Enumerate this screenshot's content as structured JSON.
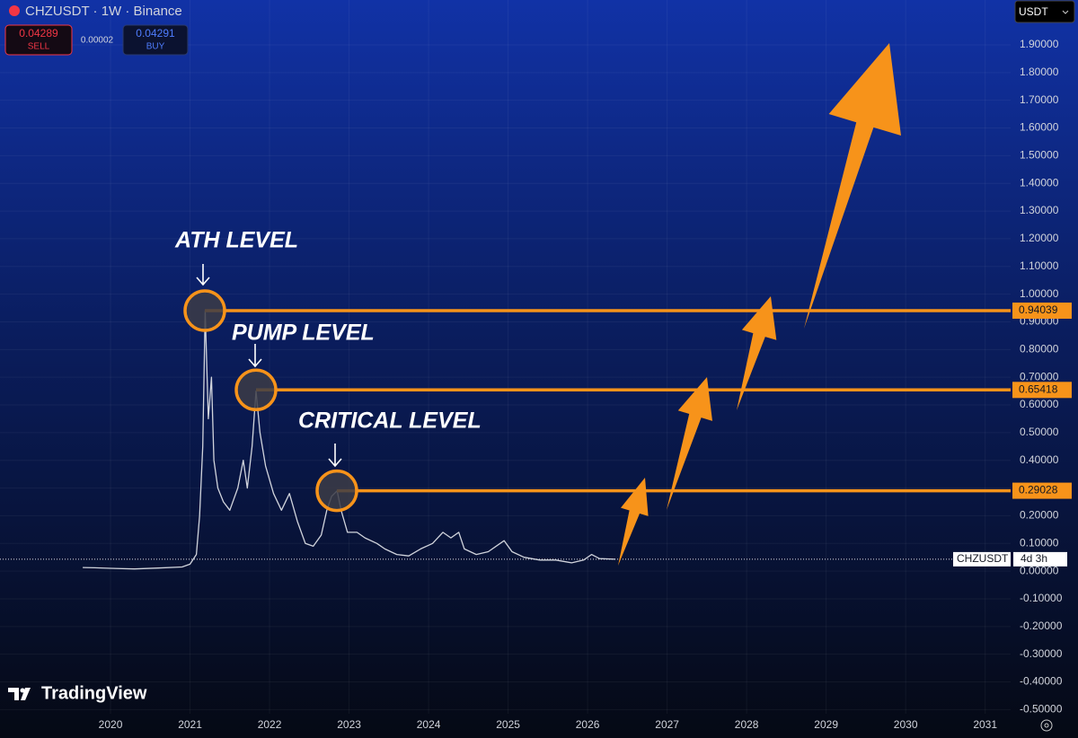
{
  "chart_data": {
    "type": "line",
    "title": "CHZUSDT · 1W · Binance",
    "currency": "USDT",
    "sell_price": 0.04289,
    "sell_label": "SELL",
    "spread": {
      "value": 2e-05,
      "label": "0.00002"
    },
    "buy_price": 0.04291,
    "buy_label": "BUY",
    "x": [
      2019.65,
      2019.8,
      2020.0,
      2020.3,
      2020.6,
      2020.9,
      2021.0,
      2021.08,
      2021.12,
      2021.16,
      2021.19,
      2021.23,
      2021.27,
      2021.3,
      2021.35,
      2021.42,
      2021.5,
      2021.6,
      2021.67,
      2021.72,
      2021.78,
      2021.83,
      2021.88,
      2021.95,
      2022.05,
      2022.15,
      2022.25,
      2022.35,
      2022.45,
      2022.55,
      2022.65,
      2022.72,
      2022.78,
      2022.85,
      2022.9,
      2022.98,
      2023.1,
      2023.2,
      2023.35,
      2023.45,
      2023.6,
      2023.75,
      2023.9,
      2024.05,
      2024.18,
      2024.28,
      2024.38,
      2024.45,
      2024.6,
      2024.75,
      2024.9,
      2024.95,
      2025.05,
      2025.2,
      2025.4,
      2025.6,
      2025.8,
      2025.95,
      2026.05,
      2026.15,
      2026.35
    ],
    "series": [
      {
        "name": "CHZUSDT",
        "color": "#d1d4dc",
        "values": [
          0.013,
          0.012,
          0.01,
          0.008,
          0.011,
          0.015,
          0.025,
          0.06,
          0.2,
          0.45,
          0.94,
          0.55,
          0.7,
          0.4,
          0.3,
          0.25,
          0.22,
          0.3,
          0.4,
          0.3,
          0.45,
          0.65,
          0.5,
          0.38,
          0.28,
          0.22,
          0.28,
          0.18,
          0.1,
          0.09,
          0.13,
          0.22,
          0.27,
          0.29,
          0.22,
          0.14,
          0.14,
          0.12,
          0.1,
          0.08,
          0.06,
          0.055,
          0.08,
          0.1,
          0.14,
          0.12,
          0.14,
          0.08,
          0.06,
          0.07,
          0.1,
          0.11,
          0.07,
          0.05,
          0.04,
          0.04,
          0.03,
          0.04,
          0.06,
          0.045,
          0.043
        ]
      }
    ],
    "current_price": 0.04289,
    "countdown": "4d 3h",
    "levels": [
      0.94039,
      0.65418,
      0.29028
    ],
    "level_color": "#f7931a",
    "annotations": [
      "ATH LEVEL",
      "PUMP LEVEL",
      "CRITICAL LEVEL"
    ],
    "watermark": "TradingView",
    "xlim": [
      2018.61,
      2031.32
    ],
    "xticks": [
      2020,
      2021,
      2022,
      2023,
      2024,
      2025,
      2026,
      2027,
      2028,
      2029,
      2030,
      2031
    ],
    "ylim": [
      -0.515,
      2.062
    ],
    "yticks": [
      {
        "value": 1.9,
        "label": "1.90000"
      },
      {
        "value": 1.8,
        "label": "1.80000"
      },
      {
        "value": 1.7,
        "label": "1.70000"
      },
      {
        "value": 1.6,
        "label": "1.60000"
      },
      {
        "value": 1.5,
        "label": "1.50000"
      },
      {
        "value": 1.4,
        "label": "1.40000"
      },
      {
        "value": 1.3,
        "label": "1.30000"
      },
      {
        "value": 1.2,
        "label": "1.20000"
      },
      {
        "value": 1.1,
        "label": "1.10000"
      },
      {
        "value": 1.0,
        "label": "1.00000"
      },
      {
        "value": 0.9,
        "label": "0.90000"
      },
      {
        "value": 0.8,
        "label": "0.80000"
      },
      {
        "value": 0.7,
        "label": "0.70000"
      },
      {
        "value": 0.6,
        "label": "0.60000"
      },
      {
        "value": 0.5,
        "label": "0.50000"
      },
      {
        "value": 0.4,
        "label": "0.40000"
      },
      {
        "value": 0.3,
        "label": "0.30000"
      },
      {
        "value": 0.2,
        "label": "0.20000"
      },
      {
        "value": 0.1,
        "label": "0.10000"
      },
      {
        "value": 0,
        "label": "0.00000"
      },
      {
        "value": -0.1,
        "label": "-0.10000"
      },
      {
        "value": -0.2,
        "label": "-0.20000"
      },
      {
        "value": -0.3,
        "label": "-0.30000"
      },
      {
        "value": -0.4,
        "label": "-0.40000"
      },
      {
        "value": -0.5,
        "label": "-0.50000"
      }
    ],
    "grid": true
  }
}
